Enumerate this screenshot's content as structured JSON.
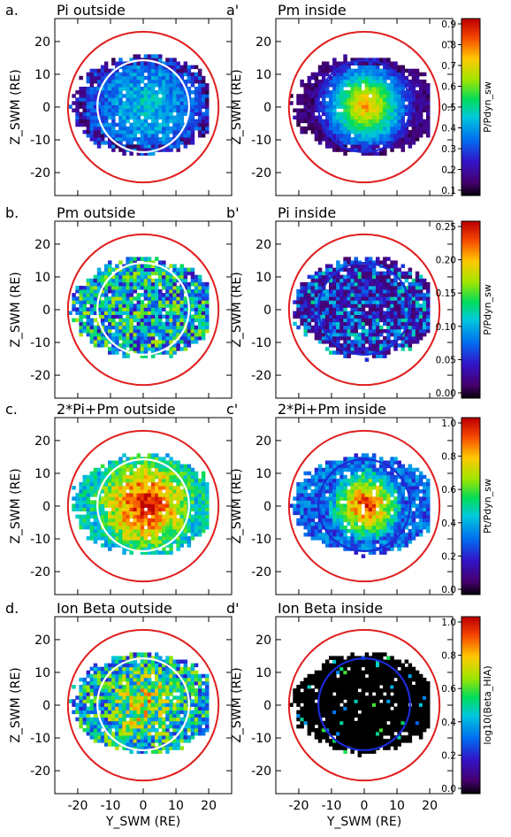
{
  "chart_data": {
    "type": "heatmap",
    "x_unit_label": "Y_SWM (RE)",
    "y_unit_label": "Z_SWM (RE)",
    "xlim": [
      -27,
      27
    ],
    "ylim": [
      -27,
      27
    ],
    "xticks": [
      -20,
      -10,
      0,
      10,
      20
    ],
    "yticks": [
      20,
      10,
      0,
      -10,
      -20
    ],
    "bow_shock_circle_radius_RE": 23,
    "panels": [
      {
        "letter": "a.",
        "title": "Pi outside",
        "row": 0,
        "col": 0,
        "inner_circle": {
          "color": "#ffffff",
          "radius_RE": 14
        },
        "field": "lowp"
      },
      {
        "letter": "a'",
        "title": "Pm inside",
        "row": 0,
        "col": 1,
        "inner_circle": {
          "color": "#1a2bd6",
          "radius_RE": 14
        },
        "field": "center"
      },
      {
        "letter": "b.",
        "title": "Pm outside",
        "row": 1,
        "col": 0,
        "inner_circle": {
          "color": "#ffffff",
          "radius_RE": 14
        },
        "field": "noisy"
      },
      {
        "letter": "b'",
        "title": "Pi inside",
        "row": 1,
        "col": 1,
        "inner_circle": {
          "color": "#1a2bd6",
          "radius_RE": 14
        },
        "field": "noisylow"
      },
      {
        "letter": "c.",
        "title": "2*Pi+Pm outside",
        "row": 2,
        "col": 0,
        "inner_circle": {
          "color": "#ffffff",
          "radius_RE": 14
        },
        "field": "hot"
      },
      {
        "letter": "c'",
        "title": "2*Pi+Pm inside",
        "row": 2,
        "col": 1,
        "inner_circle": {
          "color": "#1a2bd6",
          "radius_RE": 14
        },
        "field": "hotcenter"
      },
      {
        "letter": "d.",
        "title": "Ion Beta outside",
        "row": 3,
        "col": 0,
        "inner_circle": {
          "color": "#ffffff",
          "radius_RE": 14
        },
        "field": "beta"
      },
      {
        "letter": "d'",
        "title": "Ion Beta inside",
        "row": 3,
        "col": 1,
        "inner_circle": {
          "color": "#1a2bd6",
          "radius_RE": 14
        },
        "field": "black"
      }
    ],
    "colorbars": [
      {
        "row": 0,
        "label": "P/Pdyn_sw",
        "min": 0.1,
        "max": 0.9,
        "ticks": [
          "0.9",
          "0.8",
          "0.7",
          "0.6",
          "0.5",
          "0.4",
          "0.3",
          "0.2",
          "0.1"
        ]
      },
      {
        "row": 1,
        "label": "P/Pdyn_sw",
        "min": 0.0,
        "max": 0.25,
        "ticks": [
          "0.25",
          "0.20",
          "0.15",
          "0.10",
          "0.05",
          "0.00"
        ]
      },
      {
        "row": 2,
        "label": "Pt/Pdyn_sw",
        "min": 0.0,
        "max": 1.0,
        "ticks": [
          "1.0",
          "0.8",
          "0.6",
          "0.4",
          "0.2",
          "0.0"
        ]
      },
      {
        "row": 3,
        "label": "log10(Beta_HIA)",
        "min": 0.0,
        "max": 1.0,
        "ticks": [
          "1.0",
          "0.8",
          "0.6",
          "0.4",
          "0.2",
          "0.0"
        ]
      }
    ],
    "colors": {
      "bow_shock": "#e02020",
      "inner_outside": "#ffffff",
      "inner_inside": "#1a2bd6"
    }
  }
}
